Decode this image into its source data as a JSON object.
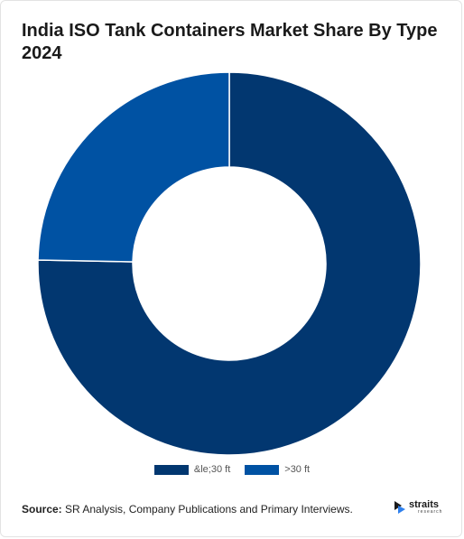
{
  "chart_data": {
    "type": "pie",
    "variant": "donut",
    "title": "India ISO Tank Containers Market Share By Type 2024",
    "categories": [
      "&le;30 ft",
      ">30 ft"
    ],
    "values": [
      75.3,
      24.7
    ],
    "colors": [
      "#023770",
      "#0052a3"
    ],
    "legend_position": "bottom"
  },
  "source": {
    "label": "Source:",
    "text": " SR Analysis, Company Publications and Primary Interviews."
  },
  "logo": {
    "word": "straits",
    "sub": "research"
  }
}
